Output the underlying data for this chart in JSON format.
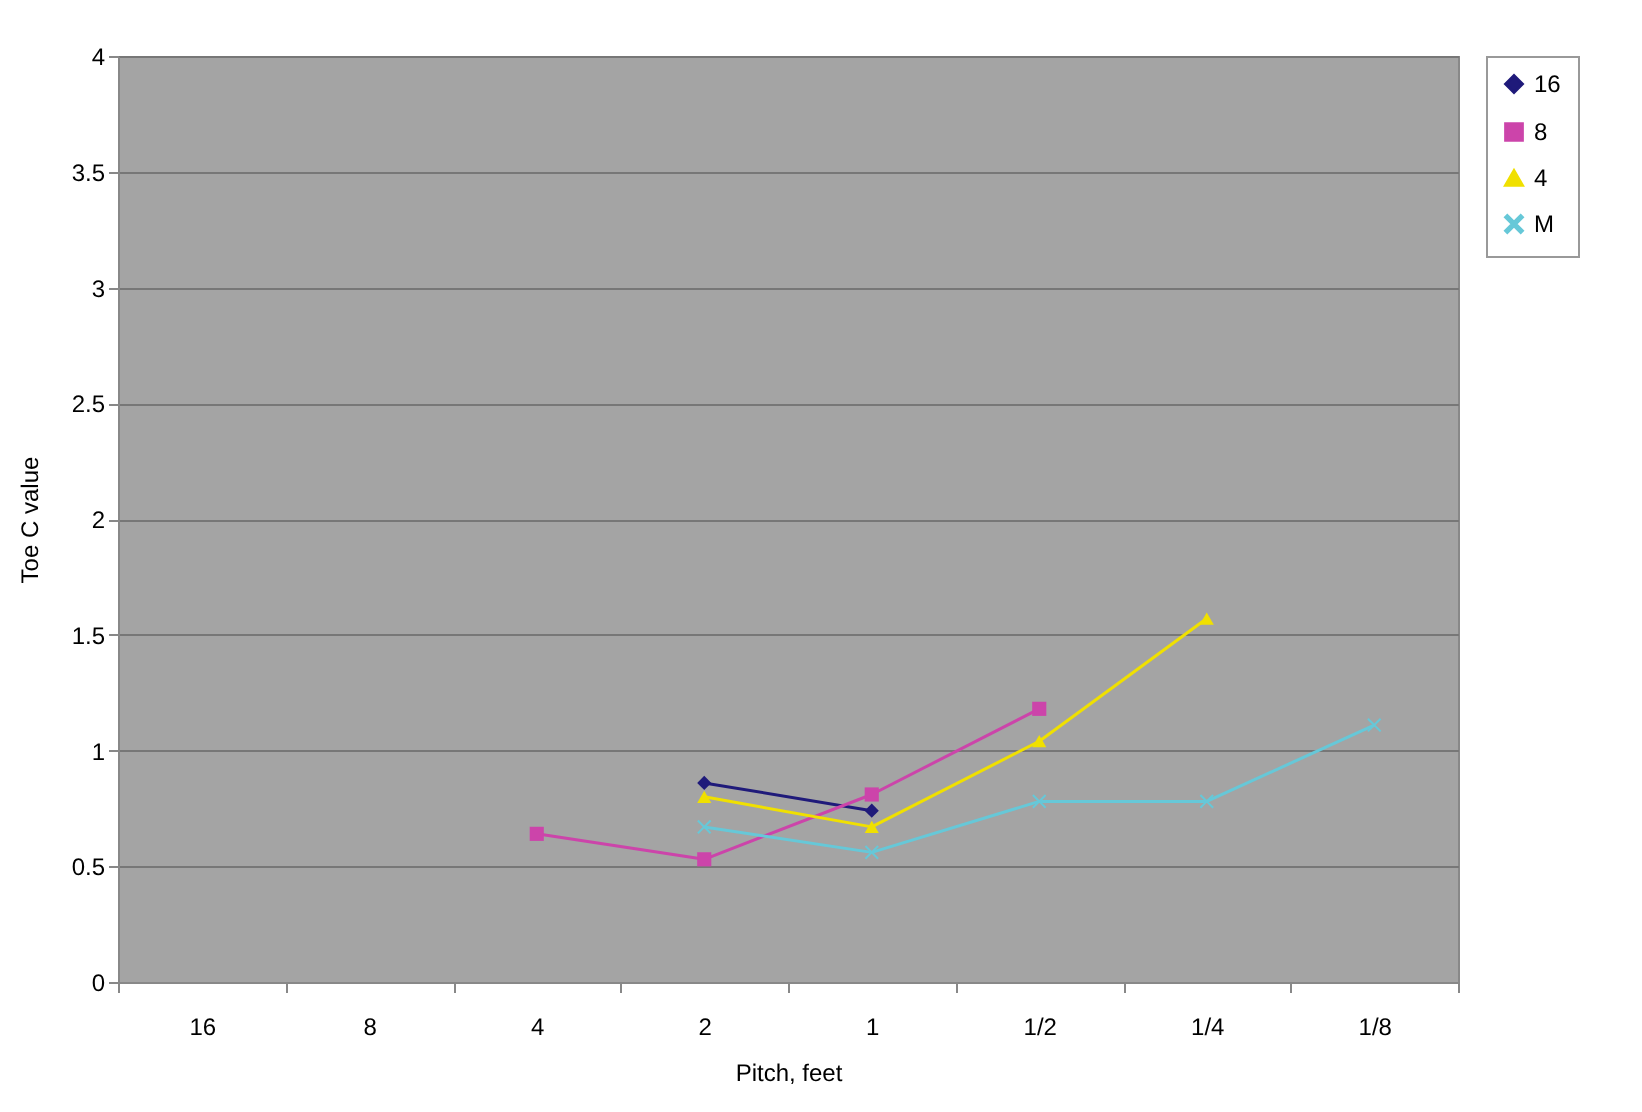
{
  "chart_data": {
    "type": "line",
    "xlabel": "Pitch, feet",
    "ylabel": "Toe C value",
    "categories": [
      "16",
      "8",
      "4",
      "2",
      "1",
      "1/2",
      "1/4",
      "1/8"
    ],
    "series": [
      {
        "name": "16",
        "color": "#1f1a7a",
        "marker": "diamond",
        "values": [
          null,
          null,
          null,
          0.86,
          0.74,
          null,
          null,
          null
        ]
      },
      {
        "name": "8",
        "color": "#cc44aa",
        "marker": "square",
        "values": [
          null,
          null,
          0.64,
          0.53,
          0.81,
          1.18,
          null,
          null
        ]
      },
      {
        "name": "4",
        "color": "#f0e000",
        "marker": "triangle",
        "values": [
          null,
          null,
          null,
          0.8,
          0.67,
          1.04,
          1.57,
          null
        ]
      },
      {
        "name": "M",
        "color": "#66c8d8",
        "marker": "cross",
        "values": [
          null,
          null,
          null,
          0.67,
          0.56,
          0.78,
          0.78,
          1.11
        ]
      }
    ],
    "ylim": [
      0,
      4
    ],
    "yticks": [
      0,
      0.5,
      1,
      1.5,
      2,
      2.5,
      3,
      3.5,
      4
    ],
    "grid": "y",
    "legend": "right"
  }
}
